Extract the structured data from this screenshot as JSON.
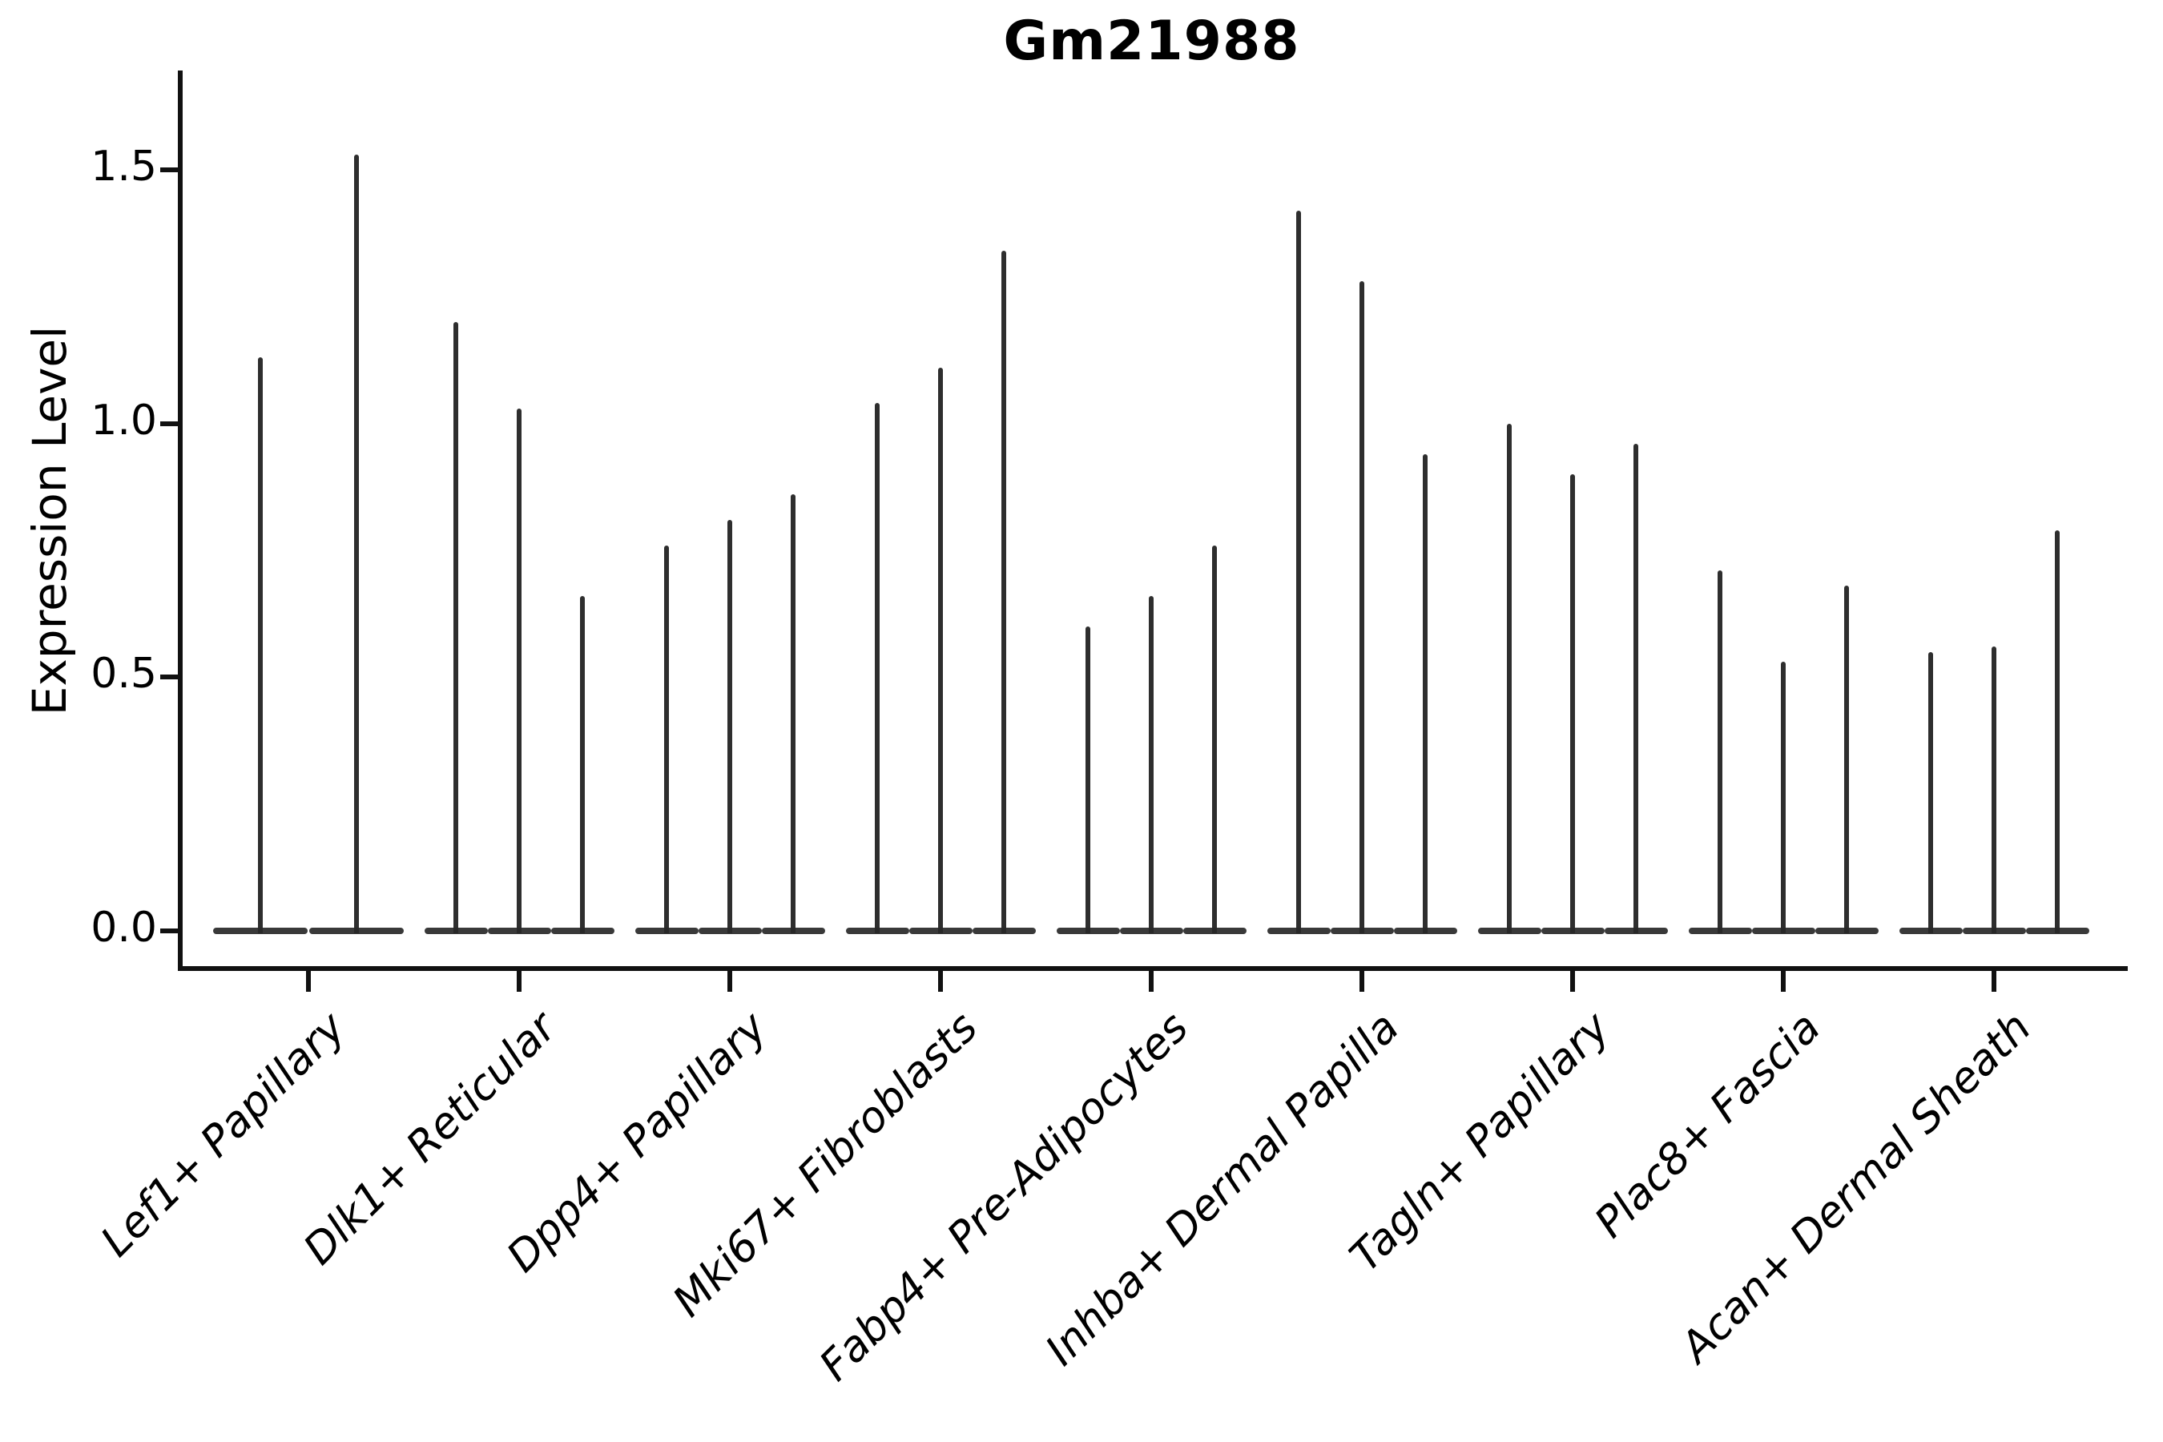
{
  "chart_data": {
    "type": "violin",
    "title": "Gm21988",
    "ylabel": "Expression Level",
    "xlabel": "",
    "ylim": [
      -0.07,
      1.7
    ],
    "yticks": [
      "0.0",
      "0.5",
      "1.0",
      "1.5"
    ],
    "ytick_values": [
      0.0,
      0.5,
      1.0,
      1.5
    ],
    "grid": "off",
    "legend": "none",
    "note": "thin spike-shaped violins; most density at 0, spikes mark max expression",
    "categories": [
      "Lef1+ Papillary",
      "Dlk1+ Reticular",
      "Dpp4+ Papillary",
      "Mki67+ Fibroblasts",
      "Fabp4+ Pre-Adipocytes",
      "Inhba+ Dermal Papilla",
      "Tagln+ Papillary",
      "Plac8+ Fascia",
      "Acan+ Dermal Sheath"
    ],
    "groups": [
      {
        "label": "Lef1+ Papillary",
        "violin_max_values": [
          1.13,
          1.53
        ]
      },
      {
        "label": "Dlk1+ Reticular",
        "violin_max_values": [
          1.2,
          1.03,
          0.66
        ]
      },
      {
        "label": "Dpp4+ Papillary",
        "violin_max_values": [
          0.76,
          0.81,
          0.86
        ]
      },
      {
        "label": "Mki67+ Fibroblasts",
        "violin_max_values": [
          1.04,
          1.11,
          1.34
        ]
      },
      {
        "label": "Fabp4+ Pre-Adipocytes",
        "violin_max_values": [
          0.6,
          0.66,
          0.76
        ]
      },
      {
        "label": "Inhba+ Dermal Papilla",
        "violin_max_values": [
          1.42,
          1.28,
          0.94
        ]
      },
      {
        "label": "Tagln+ Papillary",
        "violin_max_values": [
          1.0,
          0.9,
          0.96
        ]
      },
      {
        "label": "Plac8+ Fascia",
        "violin_max_values": [
          0.71,
          0.53,
          0.68
        ]
      },
      {
        "label": "Acan+ Dermal Sheath",
        "violin_max_values": [
          0.55,
          0.56,
          0.79
        ]
      }
    ],
    "colors": {
      "background": "#ffffff",
      "axis": "#111111",
      "violin": "#2e2e2e",
      "text": "#000000"
    }
  }
}
